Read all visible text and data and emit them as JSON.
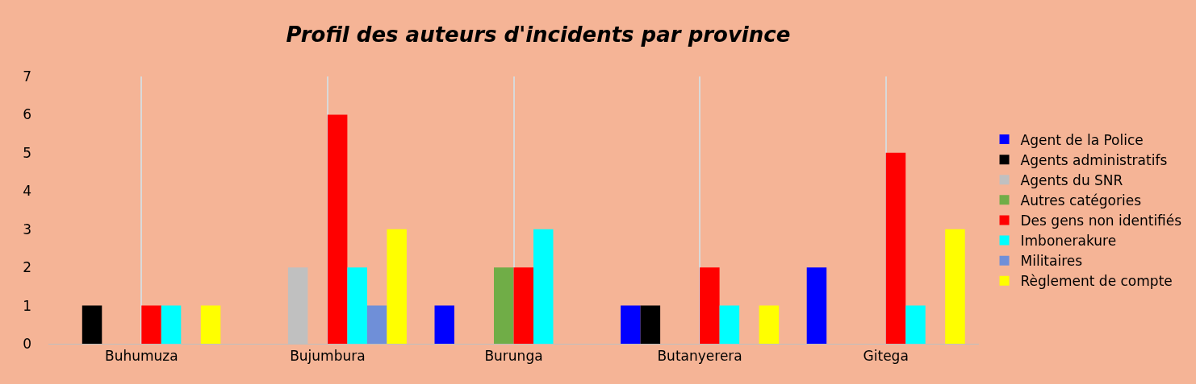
{
  "chart_data": {
    "type": "bar",
    "title": "Profil des auteurs d'incidents par province",
    "categories": [
      "Buhumuza",
      "Bujumbura",
      "Burunga",
      "Butanyerera",
      "Gitega"
    ],
    "series": [
      {
        "name": "Agent de la Police",
        "color": "#0000ff",
        "values": [
          0,
          0,
          1,
          1,
          2
        ]
      },
      {
        "name": "Agents administratifs",
        "color": "#000000",
        "values": [
          1,
          0,
          0,
          1,
          0
        ]
      },
      {
        "name": "Agents du SNR",
        "color": "#c0c0c0",
        "values": [
          0,
          2,
          0,
          0,
          0
        ]
      },
      {
        "name": "Autres catégories",
        "color": "#70ad47",
        "values": [
          0,
          0,
          2,
          0,
          0
        ]
      },
      {
        "name": "Des gens non identifiés",
        "color": "#ff0000",
        "values": [
          1,
          6,
          2,
          2,
          5
        ]
      },
      {
        "name": "Imbonerakure",
        "color": "#00ffff",
        "values": [
          1,
          2,
          3,
          1,
          1
        ]
      },
      {
        "name": "Militaires",
        "color": "#6f8fd8",
        "values": [
          0,
          1,
          0,
          0,
          0
        ]
      },
      {
        "name": "Règlement de compte",
        "color": "#ffff00",
        "values": [
          1,
          3,
          0,
          1,
          3
        ]
      }
    ],
    "ylim": [
      0,
      7
    ],
    "yticks": [
      0,
      1,
      2,
      3,
      4,
      5,
      6,
      7
    ],
    "grid": "x",
    "legend": "right"
  }
}
